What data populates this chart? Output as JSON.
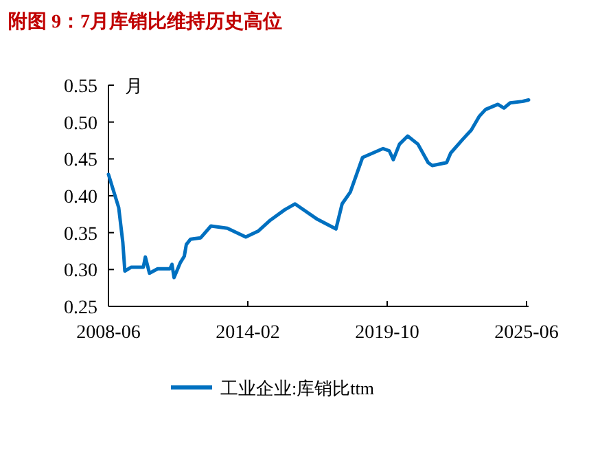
{
  "chart_data": {
    "type": "line",
    "title": "附图 9：7月库销比维持历史高位",
    "ylabel": "月",
    "x": [
      "2008-06",
      "2008-08",
      "2008-11",
      "2009-01",
      "2009-02",
      "2009-05",
      "2009-11",
      "2009-12",
      "2010-02",
      "2010-06",
      "2010-12",
      "2011-01",
      "2011-02",
      "2011-05",
      "2011-07",
      "2011-08",
      "2011-10",
      "2012-03",
      "2012-08",
      "2013-04",
      "2014-01",
      "2014-07",
      "2015-01",
      "2015-08",
      "2016-01",
      "2016-12",
      "2017-09",
      "2017-12",
      "2018-04",
      "2018-10",
      "2019-03",
      "2019-08",
      "2019-11",
      "2020-01",
      "2020-04",
      "2020-08",
      "2021-01",
      "2021-06",
      "2021-08",
      "2022-03",
      "2022-05",
      "2022-11",
      "2023-03",
      "2023-07",
      "2023-10",
      "2024-04",
      "2024-07",
      "2024-10",
      "2025-04",
      "2025-07"
    ],
    "series": [
      {
        "name": "工业企业:库销比ttm",
        "color": "#0070c0",
        "values": [
          0.429,
          0.411,
          0.384,
          0.337,
          0.298,
          0.303,
          0.303,
          0.317,
          0.295,
          0.301,
          0.301,
          0.307,
          0.289,
          0.309,
          0.318,
          0.334,
          0.341,
          0.343,
          0.359,
          0.356,
          0.344,
          0.352,
          0.367,
          0.381,
          0.389,
          0.368,
          0.355,
          0.389,
          0.405,
          0.452,
          0.458,
          0.464,
          0.461,
          0.449,
          0.47,
          0.481,
          0.47,
          0.445,
          0.441,
          0.445,
          0.458,
          0.477,
          0.489,
          0.508,
          0.517,
          0.524,
          0.519,
          0.526,
          0.528,
          0.53
        ]
      }
    ],
    "xlim": [
      "2008-06",
      "2025-07"
    ],
    "xticks": [
      "2008-06",
      "2014-02",
      "2019-10",
      "2025-06"
    ],
    "ylim": [
      0.25,
      0.55
    ],
    "yticks": [
      0.25,
      {
        "value": 0.3,
        "label": "0.30"
      },
      0.35,
      {
        "value": 0.4,
        "label": "0.40"
      },
      0.45,
      {
        "value": 0.5,
        "label": "0.50"
      },
      0.55
    ],
    "legend": "bottom",
    "grid": false
  }
}
